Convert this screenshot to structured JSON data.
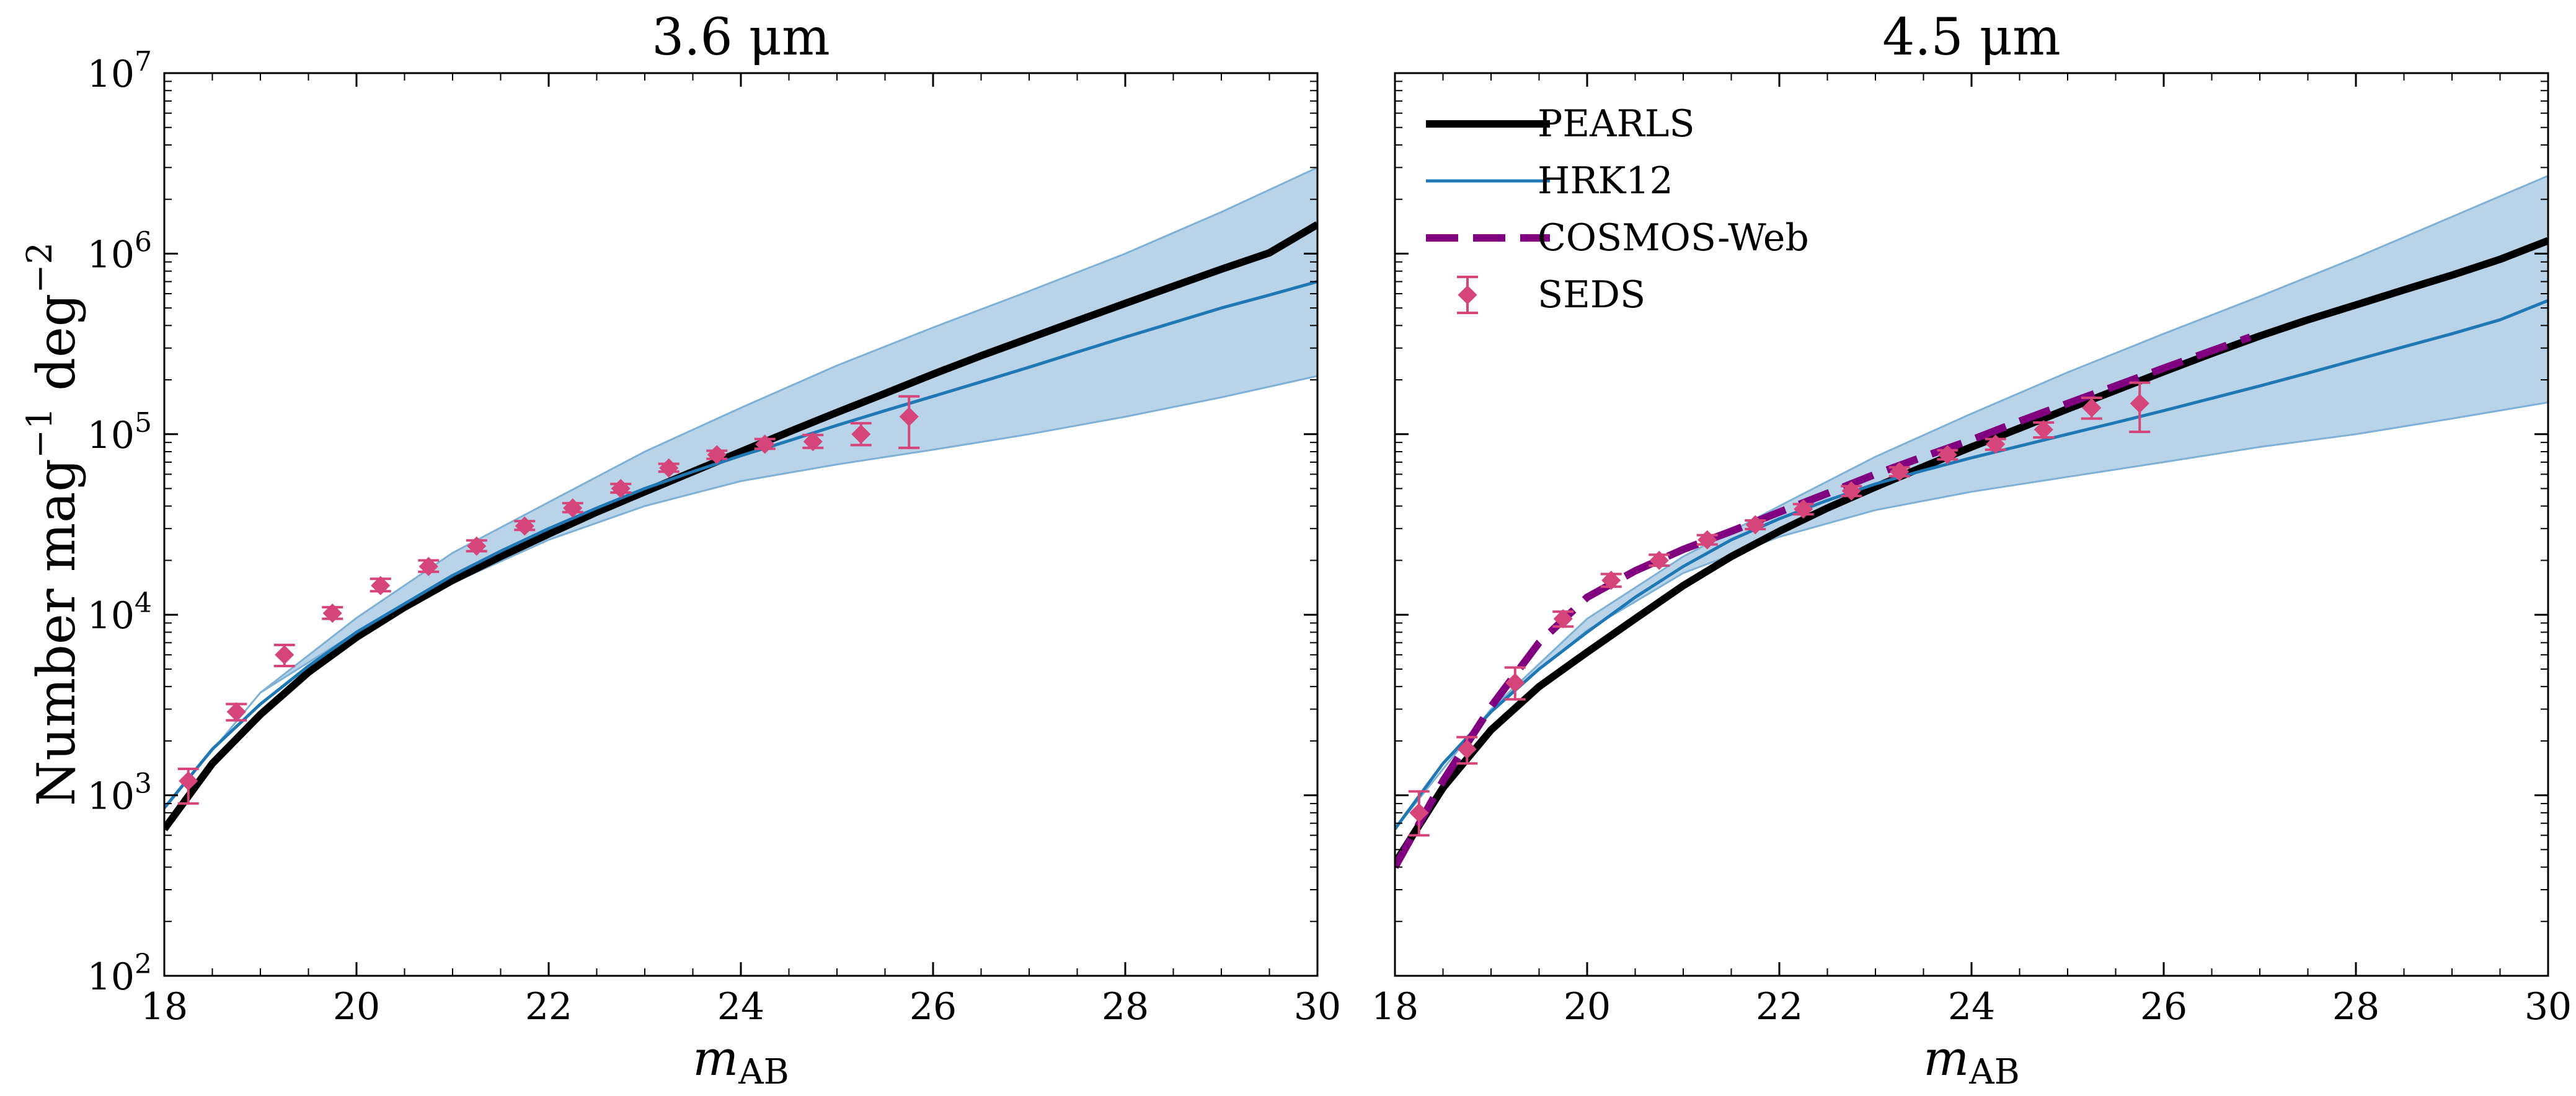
{
  "chart_data": [
    {
      "type": "line",
      "title": "3.6 μm",
      "xlabel": "m",
      "xlabel_sub": "AB",
      "ylabel": "Number mag⁻¹ deg⁻²",
      "xlim": [
        18,
        30
      ],
      "ylim": [
        100,
        10000000
      ],
      "yscale": "log",
      "grid": false,
      "xticks": [
        18,
        20,
        22,
        24,
        26,
        28,
        30
      ],
      "yticks": [
        {
          "value": 100,
          "base": "10",
          "exp": "2"
        },
        {
          "value": 1000,
          "base": "10",
          "exp": "3"
        },
        {
          "value": 10000,
          "base": "10",
          "exp": "4"
        },
        {
          "value": 100000,
          "base": "10",
          "exp": "5"
        },
        {
          "value": 1000000,
          "base": "10",
          "exp": "6"
        },
        {
          "value": 10000000,
          "base": "10",
          "exp": "7"
        }
      ],
      "band": {
        "color": "#b9d4e8",
        "edge": "#7fb1d6",
        "x": [
          18,
          19,
          20,
          21,
          22,
          23,
          24,
          25,
          26,
          27,
          28,
          29,
          30
        ],
        "lower": [
          850,
          3700,
          8000,
          15000,
          26000,
          40000,
          55000,
          68000,
          82000,
          100000,
          125000,
          160000,
          210000
        ],
        "upper": [
          850,
          3700,
          9600,
          22000,
          42000,
          80000,
          140000,
          240000,
          390000,
          620000,
          1000000,
          1700000,
          3000000
        ]
      },
      "series": [
        {
          "name": "PEARLS",
          "color": "#000000",
          "style": "solid",
          "x": [
            18,
            18.5,
            19,
            19.5,
            20,
            20.5,
            21,
            21.5,
            22,
            22.5,
            23,
            23.5,
            24,
            24.5,
            25,
            25.5,
            26,
            26.5,
            27,
            27.5,
            28,
            28.5,
            29,
            29.5,
            30
          ],
          "y": [
            650,
            1500,
            2800,
            4800,
            7500,
            11000,
            15500,
            21000,
            28000,
            37000,
            48000,
            62000,
            80000,
            103000,
            132000,
            168000,
            215000,
            272000,
            340000,
            425000,
            530000,
            660000,
            820000,
            1010000,
            1450000
          ]
        },
        {
          "name": "HRK12",
          "color": "#1f77b4",
          "style": "solid",
          "x": [
            18,
            18.5,
            19,
            19.5,
            20,
            20.5,
            21,
            21.5,
            22,
            22.5,
            23,
            23.5,
            24,
            24.5,
            25,
            25.5,
            26,
            26.5,
            27,
            27.5,
            28,
            28.5,
            29,
            29.5,
            30
          ],
          "y": [
            850,
            1800,
            3200,
            5200,
            8000,
            11500,
            16500,
            22500,
            30000,
            39000,
            50000,
            62000,
            76000,
            92000,
            112000,
            135000,
            162000,
            195000,
            235000,
            285000,
            345000,
            415000,
            500000,
            590000,
            700000
          ]
        }
      ],
      "scatter": {
        "name": "SEDS",
        "color": "#d6457a",
        "x": [
          18.25,
          18.75,
          19.25,
          19.75,
          20.25,
          20.75,
          21.25,
          21.75,
          22.25,
          22.75,
          23.25,
          23.75,
          24.25,
          24.75,
          25.25,
          25.75
        ],
        "y": [
          1200,
          2900,
          6000,
          10200,
          14500,
          18500,
          24000,
          31000,
          39000,
          50000,
          65000,
          77000,
          88000,
          91000,
          100000,
          125000
        ],
        "err_low": [
          900,
          2600,
          5200,
          9500,
          13500,
          17300,
          22500,
          29500,
          37000,
          47500,
          62000,
          73000,
          83000,
          84000,
          87000,
          84000
        ],
        "err_high": [
          1400,
          3200,
          6800,
          11000,
          15800,
          20000,
          25800,
          33000,
          41500,
          53000,
          68500,
          81000,
          94000,
          99000,
          115000,
          162000
        ]
      }
    },
    {
      "type": "line",
      "title": "4.5 μm",
      "xlabel": "m",
      "xlabel_sub": "AB",
      "xlim": [
        18,
        30
      ],
      "ylim": [
        100,
        10000000
      ],
      "yscale": "log",
      "grid": false,
      "xticks": [
        18,
        20,
        22,
        24,
        26,
        28,
        30
      ],
      "legend_position": "top-left",
      "band": {
        "color": "#b9d4e8",
        "edge": "#7fb1d6",
        "x": [
          18,
          19,
          20,
          21,
          22,
          23,
          24,
          25,
          26,
          27,
          28,
          29,
          30
        ],
        "lower": [
          650,
          3000,
          8200,
          17000,
          27000,
          38000,
          48000,
          58000,
          70000,
          85000,
          100000,
          122000,
          150000
        ],
        "upper": [
          650,
          3000,
          9500,
          21000,
          40000,
          75000,
          130000,
          220000,
          360000,
          580000,
          950000,
          1600000,
          2700000
        ]
      },
      "series": [
        {
          "name": "PEARLS",
          "color": "#000000",
          "style": "solid",
          "x": [
            18,
            18.5,
            19,
            19.5,
            20,
            20.5,
            21,
            21.5,
            22,
            22.5,
            23,
            23.5,
            24,
            24.5,
            25,
            25.5,
            26,
            26.5,
            27,
            27.5,
            28,
            28.5,
            29,
            29.5,
            30
          ],
          "y": [
            420,
            1100,
            2300,
            4000,
            6200,
            9500,
            14500,
            21000,
            29000,
            39000,
            51000,
            66000,
            85000,
            108000,
            138000,
            175000,
            222000,
            280000,
            350000,
            430000,
            520000,
            630000,
            760000,
            930000,
            1180000
          ]
        },
        {
          "name": "HRK12",
          "color": "#1f77b4",
          "style": "solid",
          "x": [
            18,
            18.5,
            19,
            19.5,
            20,
            20.5,
            21,
            21.5,
            22,
            22.5,
            23,
            23.5,
            24,
            24.5,
            25,
            25.5,
            26,
            26.5,
            27,
            27.5,
            28,
            28.5,
            29,
            29.5,
            30
          ],
          "y": [
            650,
            1500,
            2900,
            5000,
            8000,
            12500,
            18500,
            26000,
            34000,
            43000,
            53000,
            63000,
            74000,
            86000,
            100000,
            116000,
            135000,
            158000,
            185000,
            218000,
            258000,
            305000,
            360000,
            430000,
            550000
          ]
        },
        {
          "name": "COSMOS-Web",
          "color": "#800080",
          "style": "dashed",
          "x": [
            18,
            18.5,
            19,
            19.5,
            20,
            20.5,
            21,
            21.5,
            22,
            22.5,
            23,
            23.5,
            24,
            24.5,
            25,
            25.5,
            26,
            26.5,
            26.9
          ],
          "y": [
            400,
            1200,
            3100,
            7000,
            12500,
            17500,
            23000,
            29000,
            37000,
            47000,
            60000,
            75000,
            93000,
            118000,
            148000,
            185000,
            232000,
            290000,
            345000
          ]
        }
      ],
      "scatter": {
        "name": "SEDS",
        "color": "#d6457a",
        "x": [
          18.25,
          18.75,
          19.25,
          19.75,
          20.25,
          20.75,
          21.25,
          21.75,
          22.25,
          22.75,
          23.25,
          23.75,
          24.25,
          24.75,
          25.25,
          25.75
        ],
        "y": [
          800,
          1800,
          4200,
          9500,
          15500,
          20000,
          26000,
          31500,
          38500,
          48500,
          62000,
          77000,
          88000,
          106000,
          140000,
          148000
        ],
        "err_low": [
          600,
          1500,
          3400,
          8600,
          14300,
          18700,
          24500,
          29800,
          36000,
          45500,
          58500,
          72500,
          82000,
          96000,
          122000,
          103000
        ],
        "err_high": [
          1050,
          2100,
          5100,
          10400,
          16800,
          21500,
          27600,
          33300,
          41000,
          51500,
          65500,
          81500,
          94000,
          116000,
          159000,
          193000
        ]
      }
    }
  ]
}
